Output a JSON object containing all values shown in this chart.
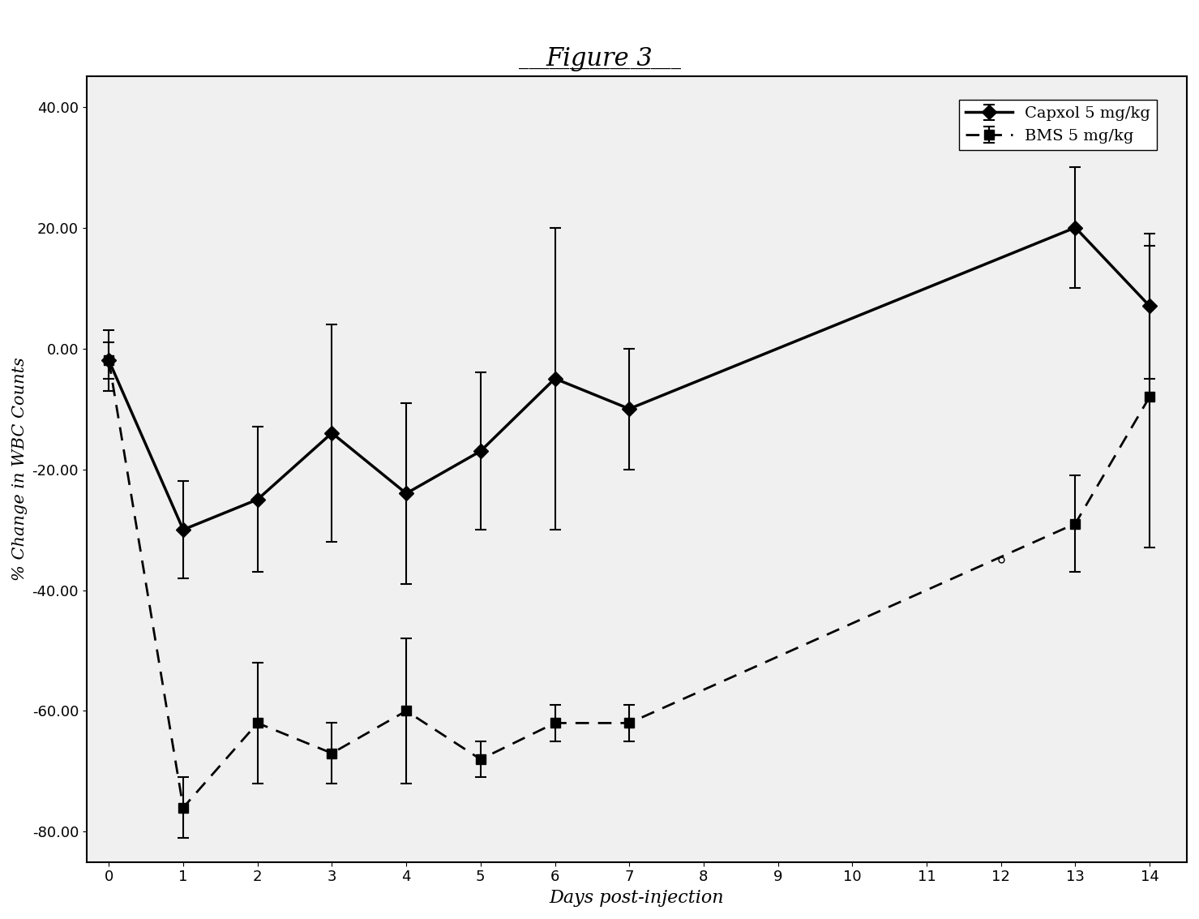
{
  "title": "Figure 3",
  "xlabel": "Days post-injection",
  "ylabel": "% Change in WBC Counts",
  "xlim": [
    -0.3,
    14.5
  ],
  "ylim": [
    -85,
    45
  ],
  "yticks": [
    -80.0,
    -60.0,
    -40.0,
    -20.0,
    0.0,
    20.0,
    40.0
  ],
  "xticks": [
    0,
    1,
    2,
    3,
    4,
    5,
    6,
    7,
    8,
    9,
    10,
    11,
    12,
    13,
    14
  ],
  "capxol_x": [
    0,
    1,
    2,
    3,
    4,
    5,
    6,
    7,
    13,
    14
  ],
  "capxol_y": [
    -2,
    -30,
    -25,
    -14,
    -24,
    -17,
    -5,
    -10,
    20,
    7
  ],
  "capxol_yerr": [
    5,
    8,
    12,
    18,
    15,
    13,
    25,
    10,
    10,
    12
  ],
  "bms_x": [
    0,
    1,
    2,
    3,
    4,
    5,
    6,
    7,
    13,
    14
  ],
  "bms_y": [
    -2,
    -76,
    -62,
    -67,
    -60,
    -68,
    -62,
    -62,
    -29,
    -8
  ],
  "bms_yerr": [
    3,
    5,
    10,
    5,
    12,
    3,
    3,
    3,
    8,
    25
  ],
  "capxol_label": "Capxol 5 mg/kg",
  "bms_label": "BMS 5 mg/kg",
  "line_color": "#000000",
  "background_color": "#ffffff"
}
